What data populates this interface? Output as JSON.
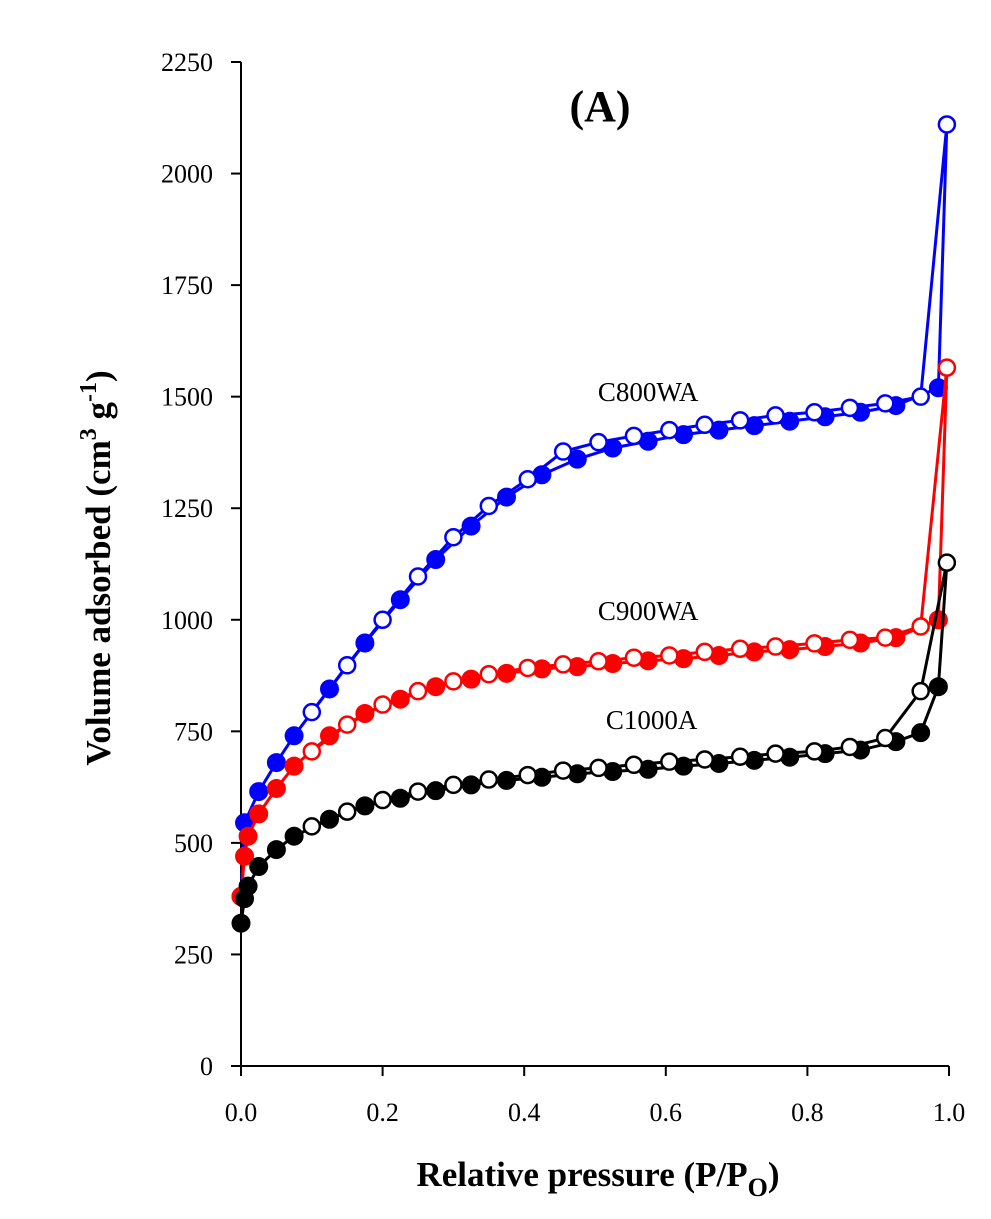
{
  "chart_data": {
    "type": "scatter",
    "title": "(A)",
    "xlabel": {
      "main": "Relative pressure (P/P",
      "sub": "O",
      "close": ")"
    },
    "ylabel": {
      "main": "Volume adsorbed (cm",
      "sup1": "3",
      "mid": " g",
      "sup2": "-1",
      "close": ")"
    },
    "xlim": [
      0,
      1.0
    ],
    "ylim": [
      0,
      2250
    ],
    "xticks": [
      "0.0",
      "0.2",
      "0.4",
      "0.6",
      "0.8",
      "1.0"
    ],
    "yticks": [
      "0",
      "250",
      "500",
      "750",
      "1000",
      "1250",
      "1500",
      "1750",
      "2000",
      "2250"
    ],
    "grid": false,
    "series": [
      {
        "name": "C800WA",
        "color": "#0000ff",
        "adsorption": {
          "x": [
            0.0,
            0.005,
            0.025,
            0.05,
            0.075,
            0.125,
            0.175,
            0.225,
            0.275,
            0.325,
            0.375,
            0.425,
            0.475,
            0.525,
            0.575,
            0.625,
            0.675,
            0.725,
            0.775,
            0.825,
            0.875,
            0.925,
            0.985
          ],
          "y": [
            380,
            545,
            615,
            680,
            740,
            845,
            948,
            1045,
            1135,
            1210,
            1275,
            1325,
            1360,
            1385,
            1400,
            1415,
            1425,
            1435,
            1445,
            1455,
            1465,
            1480,
            1520
          ]
        },
        "desorption": {
          "x": [
            0.997,
            0.96,
            0.91,
            0.86,
            0.81,
            0.755,
            0.705,
            0.655,
            0.605,
            0.555,
            0.505,
            0.455,
            0.405,
            0.35,
            0.3,
            0.25,
            0.2,
            0.15,
            0.1
          ],
          "y": [
            2110,
            1500,
            1485,
            1475,
            1465,
            1458,
            1447,
            1437,
            1425,
            1412,
            1398,
            1377,
            1315,
            1255,
            1185,
            1097,
            1000,
            898,
            793
          ]
        }
      },
      {
        "name": "C900WA",
        "color": "#ff0000",
        "adsorption": {
          "x": [
            0.0,
            0.005,
            0.01,
            0.025,
            0.05,
            0.075,
            0.125,
            0.175,
            0.225,
            0.275,
            0.325,
            0.375,
            0.425,
            0.475,
            0.525,
            0.575,
            0.625,
            0.675,
            0.725,
            0.775,
            0.825,
            0.875,
            0.925,
            0.985
          ],
          "y": [
            380,
            470,
            515,
            565,
            622,
            672,
            740,
            790,
            822,
            850,
            867,
            880,
            890,
            895,
            902,
            908,
            913,
            920,
            928,
            933,
            940,
            948,
            960,
            1000
          ]
        },
        "desorption": {
          "x": [
            0.997,
            0.96,
            0.91,
            0.86,
            0.81,
            0.755,
            0.705,
            0.655,
            0.605,
            0.555,
            0.505,
            0.455,
            0.405,
            0.35,
            0.3,
            0.25,
            0.2,
            0.15,
            0.1
          ],
          "y": [
            1565,
            985,
            960,
            955,
            947,
            940,
            935,
            928,
            920,
            915,
            907,
            900,
            892,
            878,
            862,
            840,
            810,
            765,
            705
          ]
        }
      },
      {
        "name": "C1000A",
        "color": "#000000",
        "adsorption": {
          "x": [
            0.0,
            0.005,
            0.01,
            0.025,
            0.05,
            0.075,
            0.125,
            0.175,
            0.225,
            0.275,
            0.325,
            0.375,
            0.425,
            0.475,
            0.525,
            0.575,
            0.625,
            0.675,
            0.725,
            0.775,
            0.825,
            0.875,
            0.925,
            0.96,
            0.985
          ],
          "y": [
            320,
            375,
            403,
            447,
            485,
            515,
            553,
            583,
            600,
            617,
            630,
            640,
            647,
            655,
            660,
            665,
            672,
            678,
            685,
            692,
            700,
            708,
            727,
            747,
            850
          ]
        },
        "desorption": {
          "x": [
            0.997,
            0.96,
            0.91,
            0.86,
            0.81,
            0.755,
            0.705,
            0.655,
            0.605,
            0.555,
            0.505,
            0.455,
            0.405,
            0.35,
            0.3,
            0.25,
            0.2,
            0.15,
            0.1
          ],
          "y": [
            1128,
            840,
            735,
            715,
            705,
            700,
            693,
            687,
            682,
            675,
            668,
            662,
            652,
            642,
            630,
            615,
            596,
            570,
            537
          ]
        }
      }
    ]
  }
}
